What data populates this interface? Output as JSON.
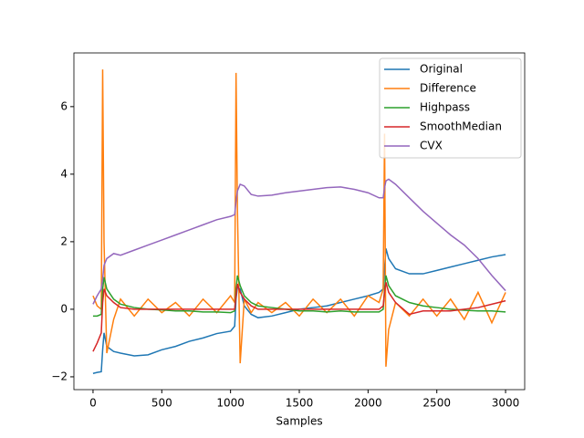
{
  "chart_data": {
    "type": "line",
    "x_label": "Samples",
    "x": [
      0,
      30,
      60,
      70,
      80,
      100,
      150,
      200,
      300,
      400,
      500,
      600,
      700,
      800,
      900,
      1000,
      1030,
      1040,
      1050,
      1070,
      1100,
      1150,
      1200,
      1300,
      1400,
      1500,
      1600,
      1700,
      1800,
      1900,
      2000,
      2080,
      2110,
      2120,
      2130,
      2150,
      2200,
      2300,
      2400,
      2500,
      2600,
      2700,
      2800,
      2900,
      3000
    ],
    "series": [
      {
        "name": "Original",
        "color": "#1f77b4",
        "values": [
          -1.9,
          -1.87,
          -1.85,
          -1.2,
          -0.7,
          -1.1,
          -1.25,
          -1.3,
          -1.38,
          -1.35,
          -1.2,
          -1.1,
          -0.95,
          -0.85,
          -0.72,
          -0.65,
          -0.5,
          0.3,
          0.65,
          0.6,
          0.1,
          -0.15,
          -0.25,
          -0.2,
          -0.1,
          0,
          0.05,
          0.1,
          0.2,
          0.3,
          0.4,
          0.5,
          0.6,
          1.2,
          1.8,
          1.5,
          1.2,
          1.05,
          1.05,
          1.15,
          1.25,
          1.35,
          1.45,
          1.55,
          1.62
        ]
      },
      {
        "name": "Difference",
        "color": "#ff7f0e",
        "values": [
          0.4,
          0.1,
          0,
          7.1,
          2,
          -1.3,
          -0.3,
          0.3,
          -0.2,
          0.3,
          -0.1,
          0.2,
          -0.2,
          0.3,
          -0.1,
          0.4,
          0.2,
          7.0,
          3,
          -1.6,
          0.3,
          -0.1,
          0.2,
          -0.1,
          0.2,
          -0.2,
          0.3,
          -0.1,
          0.3,
          -0.2,
          0.4,
          0.2,
          0.6,
          5.2,
          -1.7,
          -0.6,
          0.2,
          -0.2,
          0.3,
          -0.2,
          0.3,
          -0.3,
          0.5,
          -0.4,
          0.5
        ]
      },
      {
        "name": "Highpass",
        "color": "#2ca02c",
        "values": [
          -0.2,
          -0.2,
          -0.15,
          0.6,
          0.95,
          0.6,
          0.3,
          0.15,
          0.05,
          0,
          -0.02,
          -0.05,
          -0.05,
          -0.08,
          -0.08,
          -0.1,
          -0.05,
          0.6,
          1.0,
          0.7,
          0.4,
          0.2,
          0.1,
          0.05,
          0,
          -0.05,
          -0.05,
          -0.08,
          -0.05,
          -0.08,
          -0.08,
          -0.08,
          0,
          0.6,
          1.0,
          0.7,
          0.4,
          0.2,
          0.1,
          0.05,
          0,
          -0.03,
          -0.05,
          -0.05,
          -0.08
        ]
      },
      {
        "name": "SmoothMedian",
        "color": "#d62728",
        "values": [
          -1.25,
          -1.0,
          -0.7,
          0.2,
          0.6,
          0.4,
          0.2,
          0.05,
          0,
          0,
          0,
          0,
          0,
          0,
          0,
          0,
          0,
          0.4,
          0.75,
          0.5,
          0.3,
          0.1,
          0,
          0,
          0,
          0,
          0,
          0,
          0,
          0,
          0,
          0,
          0.1,
          0.5,
          0.8,
          0.5,
          0.2,
          -0.15,
          -0.05,
          -0.05,
          -0.05,
          0,
          0.05,
          0.15,
          0.25
        ]
      },
      {
        "name": "CVX",
        "color": "#9467bd",
        "values": [
          0.15,
          0.4,
          0.6,
          0.9,
          1.3,
          1.5,
          1.65,
          1.6,
          1.75,
          1.9,
          2.05,
          2.2,
          2.35,
          2.5,
          2.65,
          2.75,
          2.8,
          3.2,
          3.5,
          3.7,
          3.65,
          3.4,
          3.35,
          3.38,
          3.45,
          3.5,
          3.55,
          3.6,
          3.62,
          3.55,
          3.45,
          3.3,
          3.3,
          3.6,
          3.8,
          3.85,
          3.7,
          3.3,
          2.9,
          2.55,
          2.2,
          1.9,
          1.5,
          1.0,
          0.55
        ]
      }
    ],
    "xlim": [
      -139,
      3139
    ],
    "ylim": [
      -2.38,
      7.59
    ],
    "xticks": [
      0,
      500,
      1000,
      1500,
      2000,
      2500,
      3000
    ],
    "yticks": [
      {
        "value": -2,
        "label": "−2"
      },
      0,
      2,
      4,
      6
    ],
    "legend": "upper right"
  }
}
